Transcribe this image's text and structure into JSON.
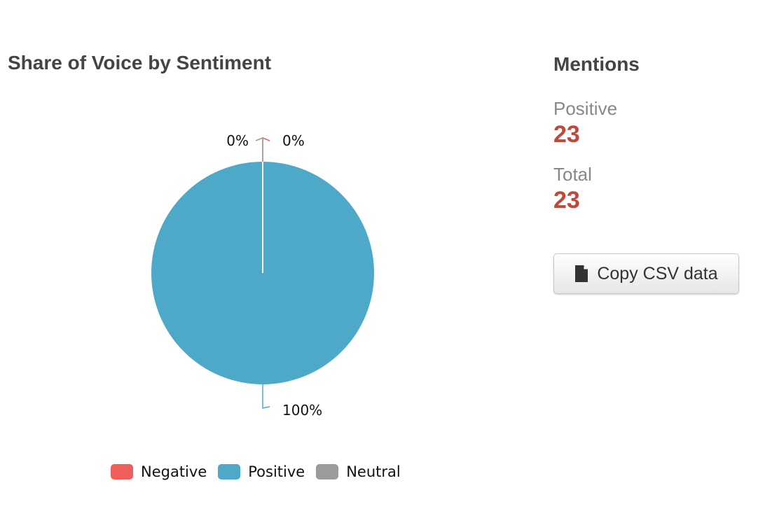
{
  "chart_data": {
    "type": "pie",
    "title": "Share of Voice by Sentiment",
    "categories": [
      "Negative",
      "Positive",
      "Neutral"
    ],
    "values": [
      0,
      100,
      0
    ],
    "unit": "%",
    "data_labels": [
      "0%",
      "100%",
      "0%"
    ],
    "colors": [
      "#ef5e5a",
      "#4ea9c9",
      "#9b9b9b"
    ],
    "legend_placement": "bottom"
  },
  "mentions": {
    "title": "Mentions",
    "stats": [
      {
        "label": "Positive",
        "value": "23"
      },
      {
        "label": "Total",
        "value": "23"
      }
    ]
  },
  "actions": {
    "copy_csv_label": "Copy CSV data",
    "copy_csv_icon": "document-icon"
  }
}
